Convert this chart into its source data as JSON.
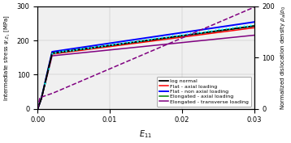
{
  "title": "",
  "xlabel": "$E_{11}$",
  "ylabel_left": "Intermediate stress $\\psi_{,E_1}$ [MPa]",
  "ylabel_right": "Normalized dislocation density $\\rho_a/\\rho_0$",
  "xlim": [
    0,
    0.03
  ],
  "ylim_left": [
    0,
    300
  ],
  "ylim_right": [
    0,
    200
  ],
  "xticks": [
    0,
    0.01,
    0.02,
    0.03
  ],
  "yticks_left": [
    0,
    100,
    200,
    300
  ],
  "yticks_right": [
    0,
    100,
    200
  ],
  "legend_entries": [
    "log normal",
    "Flat - axial loading",
    "Flat - non axial loading",
    "Elongated - axial loading",
    "Elongated - transverse loading"
  ],
  "line_colors": [
    "black",
    "red",
    "blue",
    "green",
    "purple"
  ],
  "background_color": "#f0f0f0",
  "figsize": [
    3.58,
    1.77
  ],
  "dpi": 100
}
